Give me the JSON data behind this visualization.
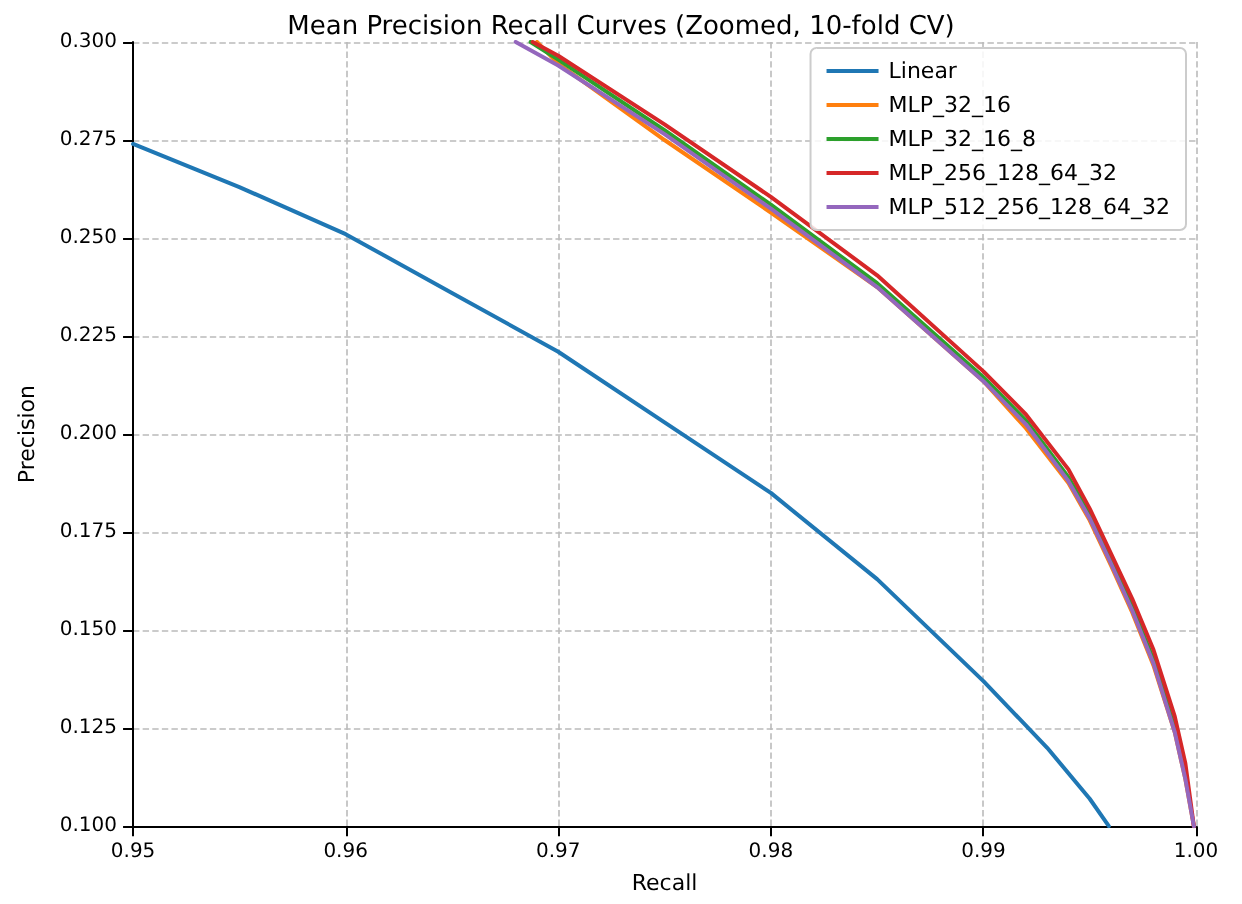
{
  "chart_data": {
    "type": "line",
    "title": "Mean Precision Recall Curves (Zoomed, 10-fold CV)",
    "xlabel": "Recall",
    "ylabel": "Precision",
    "xlim": [
      0.95,
      1.0
    ],
    "xticks": [
      0.95,
      0.96,
      0.97,
      0.98,
      0.99,
      {
        "value": 1.0,
        "label": "1.00"
      }
    ],
    "ylim": [
      0.1,
      0.3
    ],
    "yticks": [
      {
        "value": 0.1,
        "label": "0.100"
      },
      0.125,
      {
        "value": 0.15,
        "label": "0.150"
      },
      0.175,
      {
        "value": 0.2,
        "label": "0.200"
      },
      0.225,
      {
        "value": 0.25,
        "label": "0.250"
      },
      0.275,
      {
        "value": 0.3,
        "label": "0.300"
      }
    ],
    "grid": true,
    "legend": "top right",
    "marker": "none",
    "line_style": "solid",
    "series": [
      {
        "name": "Linear",
        "color": "#1f77b4",
        "x": [
          0.95,
          0.955,
          0.96,
          0.965,
          0.97,
          0.975,
          0.98,
          0.985,
          0.99,
          0.993,
          0.995,
          0.9959
        ],
        "values": [
          0.274,
          0.263,
          0.251,
          0.236,
          0.221,
          0.203,
          0.185,
          0.163,
          0.137,
          0.12,
          0.107,
          0.1
        ]
      },
      {
        "name": "MLP_32_16",
        "color": "#ff7f0e",
        "x": [
          0.969,
          0.97,
          0.975,
          0.98,
          0.985,
          0.99,
          0.992,
          0.994,
          0.995,
          0.996,
          0.997,
          0.998,
          0.999,
          0.9995,
          0.9999
        ],
        "values": [
          0.3,
          0.2945,
          0.275,
          0.2565,
          0.2375,
          0.2135,
          0.2015,
          0.1875,
          0.178,
          0.1665,
          0.1545,
          0.141,
          0.124,
          0.112,
          0.1
        ]
      },
      {
        "name": "MLP_32_16_8",
        "color": "#2ca02c",
        "x": [
          0.9687,
          0.97,
          0.975,
          0.98,
          0.985,
          0.99,
          0.992,
          0.994,
          0.995,
          0.996,
          0.997,
          0.998,
          0.999
        ],
        "values": [
          0.3,
          0.2955,
          0.2775,
          0.2585,
          0.2385,
          0.2145,
          0.2035,
          0.189,
          0.1795,
          0.168,
          0.156,
          0.1425,
          0.125
        ]
      },
      {
        "name": "MLP_256_128_64_32",
        "color": "#d62728",
        "x": [
          0.9688,
          0.97,
          0.975,
          0.98,
          0.985,
          0.99,
          0.992,
          0.994,
          0.995,
          0.996,
          0.997,
          0.998,
          0.999,
          0.9995,
          0.9999
        ],
        "values": [
          0.3,
          0.2965,
          0.279,
          0.2605,
          0.2405,
          0.216,
          0.205,
          0.191,
          0.181,
          0.1695,
          0.158,
          0.145,
          0.128,
          0.116,
          0.1
        ]
      },
      {
        "name": "MLP_512_256_128_64_32",
        "color": "#9467bd",
        "x": [
          0.968,
          0.97,
          0.975,
          0.98,
          0.985,
          0.99,
          0.992,
          0.994,
          0.995,
          0.996,
          0.997,
          0.998,
          0.999,
          0.9995,
          0.9999
        ],
        "values": [
          0.3,
          0.294,
          0.2765,
          0.2575,
          0.2375,
          0.2135,
          0.2025,
          0.188,
          0.1785,
          0.167,
          0.155,
          0.1415,
          0.124,
          0.112,
          0.1
        ]
      }
    ]
  }
}
